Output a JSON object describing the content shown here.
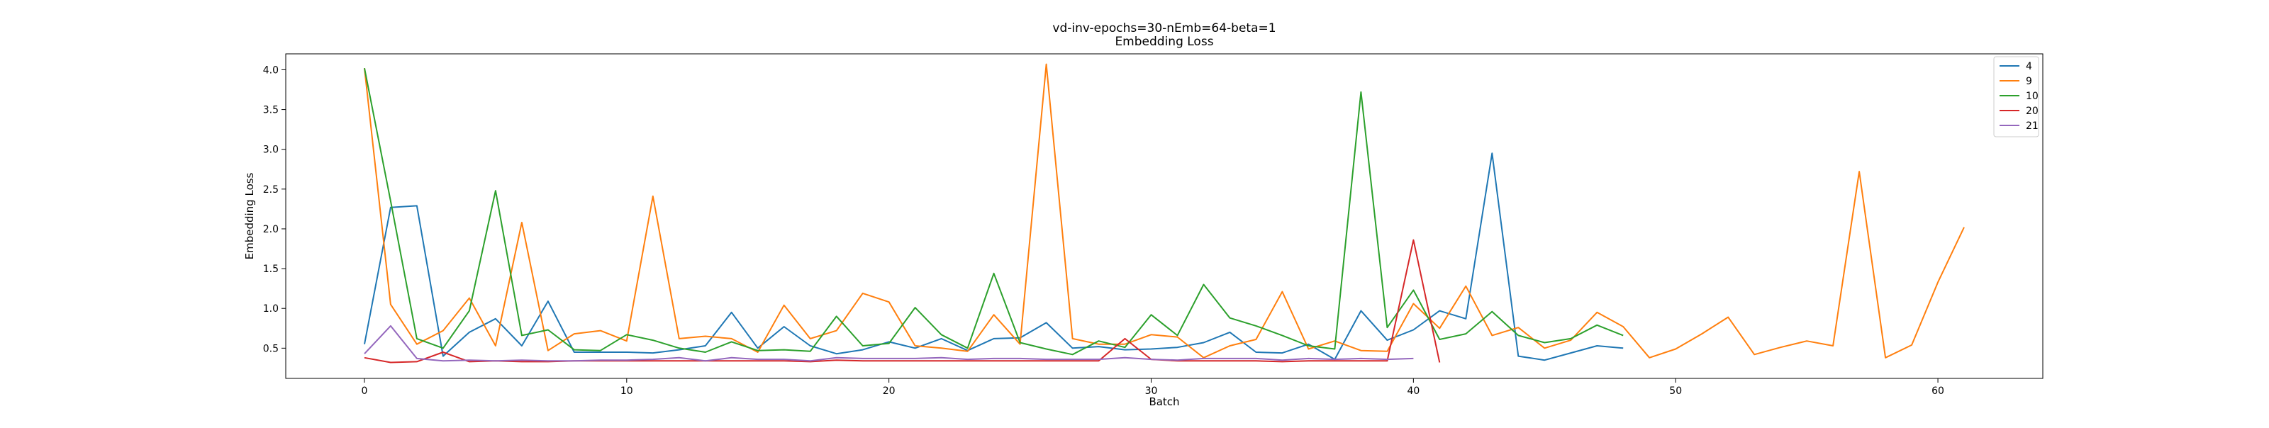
{
  "chart_data": {
    "type": "line",
    "title": "vd-inv-epochs=30-nEmb=64-beta=1",
    "subtitle": "Embedding Loss",
    "xlabel": "Batch",
    "ylabel": "Embedding Loss",
    "xlim": [
      -3,
      64
    ],
    "ylim": [
      0.12,
      4.2
    ],
    "xticks": [
      0,
      10,
      20,
      30,
      40,
      50,
      60
    ],
    "yticks": [
      0.5,
      1.0,
      1.5,
      2.0,
      2.5,
      3.0,
      3.5,
      4.0
    ],
    "xtick_labels": [
      "0",
      "10",
      "20",
      "30",
      "40",
      "50",
      "60"
    ],
    "ytick_labels": [
      "0.5",
      "1.0",
      "1.5",
      "2.0",
      "2.5",
      "3.0",
      "3.5",
      "4.0"
    ],
    "grid": false,
    "legend_position": "top-right",
    "series": [
      {
        "name": "4",
        "color": "#1f77b4",
        "values": [
          0.55,
          2.27,
          2.29,
          0.4,
          0.7,
          0.87,
          0.53,
          1.09,
          0.45,
          0.45,
          0.45,
          0.44,
          0.48,
          0.53,
          0.95,
          0.5,
          0.77,
          0.53,
          0.43,
          0.48,
          0.58,
          0.5,
          0.62,
          0.47,
          0.62,
          0.63,
          0.82,
          0.5,
          0.52,
          0.48,
          0.49,
          0.51,
          0.57,
          0.7,
          0.45,
          0.44,
          0.55,
          0.36,
          0.97,
          0.6,
          0.73,
          0.97,
          0.87,
          2.95,
          0.4,
          0.35,
          0.44,
          0.53,
          0.5
        ]
      },
      {
        "name": "9",
        "color": "#ff7f0e",
        "values": [
          4.02,
          1.05,
          0.55,
          0.72,
          1.13,
          0.53,
          2.08,
          0.47,
          0.68,
          0.72,
          0.59,
          2.41,
          0.62,
          0.65,
          0.62,
          0.45,
          1.04,
          0.62,
          0.72,
          1.19,
          1.08,
          0.53,
          0.5,
          0.46,
          0.92,
          0.55,
          4.07,
          0.62,
          0.55,
          0.55,
          0.67,
          0.64,
          0.38,
          0.53,
          0.61,
          1.21,
          0.49,
          0.59,
          0.47,
          0.46,
          1.06,
          0.75,
          1.28,
          0.66,
          0.76,
          0.5,
          0.6,
          0.95,
          0.77,
          0.38,
          0.49,
          0.68,
          0.89,
          0.42,
          0.51,
          0.59,
          0.53,
          2.72,
          0.38,
          0.54,
          1.33,
          2.02
        ]
      },
      {
        "name": "10",
        "color": "#2ca02c",
        "values": [
          4.02,
          2.35,
          0.62,
          0.5,
          0.97,
          2.48,
          0.66,
          0.73,
          0.48,
          0.47,
          0.67,
          0.6,
          0.5,
          0.45,
          0.58,
          0.47,
          0.48,
          0.46,
          0.9,
          0.53,
          0.56,
          1.01,
          0.67,
          0.5,
          1.44,
          0.57,
          0.49,
          0.42,
          0.59,
          0.51,
          0.92,
          0.66,
          1.3,
          0.88,
          0.78,
          0.66,
          0.53,
          0.49,
          3.72,
          0.76,
          1.23,
          0.61,
          0.68,
          0.96,
          0.66,
          0.57,
          0.62,
          0.79,
          0.66
        ]
      },
      {
        "name": "20",
        "color": "#d62728",
        "values": [
          0.38,
          0.32,
          0.33,
          0.45,
          0.33,
          0.34,
          0.33,
          0.33,
          0.34,
          0.34,
          0.34,
          0.34,
          0.34,
          0.34,
          0.34,
          0.34,
          0.34,
          0.33,
          0.35,
          0.34,
          0.34,
          0.34,
          0.34,
          0.34,
          0.34,
          0.34,
          0.34,
          0.34,
          0.34,
          0.62,
          0.36,
          0.34,
          0.34,
          0.34,
          0.34,
          0.33,
          0.34,
          0.34,
          0.34,
          0.34,
          1.86,
          0.32
        ]
      },
      {
        "name": "21",
        "color": "#9467bd",
        "values": [
          0.43,
          0.78,
          0.37,
          0.34,
          0.35,
          0.34,
          0.35,
          0.34,
          0.34,
          0.35,
          0.35,
          0.36,
          0.38,
          0.34,
          0.38,
          0.36,
          0.36,
          0.34,
          0.38,
          0.37,
          0.37,
          0.37,
          0.38,
          0.36,
          0.37,
          0.37,
          0.36,
          0.36,
          0.36,
          0.38,
          0.36,
          0.35,
          0.37,
          0.37,
          0.37,
          0.35,
          0.37,
          0.36,
          0.37,
          0.36,
          0.37
        ]
      }
    ]
  }
}
